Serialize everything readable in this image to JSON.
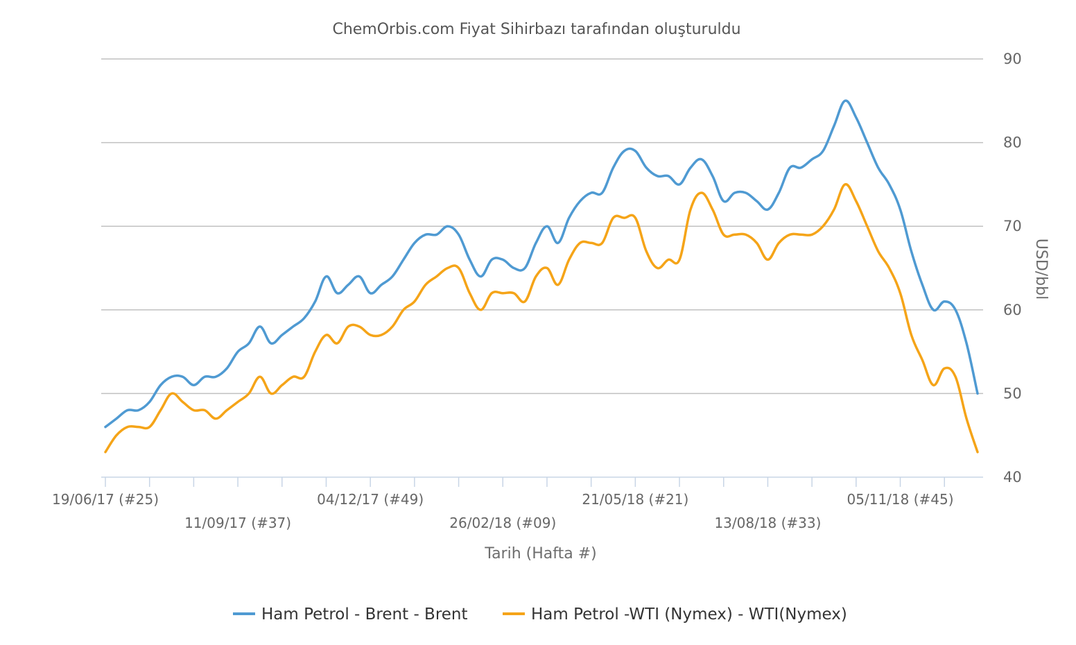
{
  "chart_data": {
    "type": "line",
    "title": "ChemOrbis.com Fiyat Sihirbazı tarafından oluşturuldu",
    "xlabel": "Tarih (Hafta #)",
    "ylabel": "USD/bbl",
    "ylim": [
      40,
      90
    ],
    "yticks": [
      40,
      50,
      60,
      70,
      80,
      90
    ],
    "y_axis_side": "right",
    "grid": true,
    "legend_position": "bottom",
    "x_tick_labels": [
      {
        "index": 0,
        "label": "19/06/17 (#25)"
      },
      {
        "index": 12,
        "label": "11/09/17 (#37)"
      },
      {
        "index": 24,
        "label": "04/12/17 (#49)"
      },
      {
        "index": 36,
        "label": "26/02/18 (#09)"
      },
      {
        "index": 48,
        "label": "21/05/18 (#21)"
      },
      {
        "index": 60,
        "label": "13/08/18 (#33)"
      },
      {
        "index": 72,
        "label": "05/11/18 (#45)"
      }
    ],
    "n_points": 80,
    "series": [
      {
        "name": "Ham Petrol - Brent - Brent",
        "color": "#4f9ad2",
        "values": [
          46,
          47,
          48,
          48,
          49,
          51,
          52,
          52,
          51,
          52,
          52,
          53,
          55,
          56,
          58,
          56,
          57,
          58,
          59,
          61,
          64,
          62,
          63,
          64,
          62,
          63,
          64,
          66,
          68,
          69,
          69,
          70,
          69,
          66,
          64,
          66,
          66,
          65,
          65,
          68,
          70,
          68,
          71,
          73,
          74,
          74,
          77,
          79,
          79,
          77,
          76,
          76,
          75,
          77,
          78,
          76,
          73,
          74,
          74,
          73,
          72,
          74,
          77,
          77,
          78,
          79,
          82,
          85,
          83,
          80,
          77,
          75,
          72,
          67,
          63,
          60,
          61,
          60,
          56,
          50
        ]
      },
      {
        "name": "Ham Petrol -WTI (Nymex) - WTI(Nymex)",
        "color": "#f5a418",
        "values": [
          43,
          45,
          46,
          46,
          46,
          48,
          50,
          49,
          48,
          48,
          47,
          48,
          49,
          50,
          52,
          50,
          51,
          52,
          52,
          55,
          57,
          56,
          58,
          58,
          57,
          57,
          58,
          60,
          61,
          63,
          64,
          65,
          65,
          62,
          60,
          62,
          62,
          62,
          61,
          64,
          65,
          63,
          66,
          68,
          68,
          68,
          71,
          71,
          71,
          67,
          65,
          66,
          66,
          72,
          74,
          72,
          69,
          69,
          69,
          68,
          66,
          68,
          69,
          69,
          69,
          70,
          72,
          75,
          73,
          70,
          67,
          65,
          62,
          57,
          54,
          51,
          53,
          52,
          47,
          43
        ]
      }
    ]
  }
}
